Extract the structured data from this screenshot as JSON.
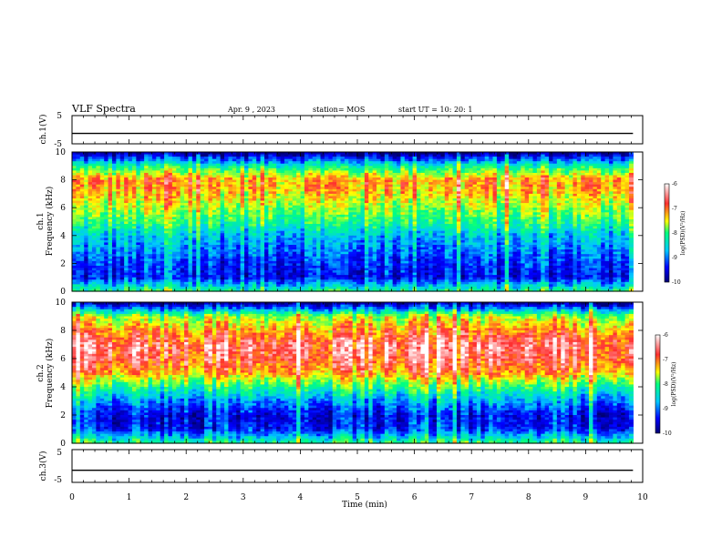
{
  "header": {
    "title": "VLF Spectra",
    "date": "Apr. 9 , 2023",
    "station": "station= MOS",
    "start": "start UT = 10: 20: 1"
  },
  "chart_data": [
    {
      "type": "line",
      "panel": "ch1-waveform",
      "ylabel": "ch.1(V)",
      "ylim": [
        -5,
        5
      ],
      "yticks": [
        "5",
        "-5"
      ],
      "xlim": [
        0,
        10
      ],
      "series": [
        {
          "x": [
            0,
            9.83
          ],
          "values": [
            -1.3,
            -1.3
          ]
        }
      ]
    },
    {
      "type": "heatmap",
      "panel": "ch1-spectrogram",
      "ylabel": "ch.1\nFrequency (kHz)",
      "ylabel_line1": "ch.1",
      "ylabel_line2": "Frequency (kHz)",
      "ylim": [
        0,
        10
      ],
      "yticks": [
        "0",
        "2",
        "4",
        "6",
        "8",
        "10"
      ],
      "xlim": [
        0,
        10
      ],
      "x_end_min": 9.83,
      "frequency_bands_khz": [
        0,
        1,
        2,
        3,
        4,
        5,
        6,
        7,
        8,
        9,
        10
      ],
      "typical_log_psd": [
        -8.0,
        -9.4,
        -9.2,
        -8.9,
        -8.6,
        -8.0,
        -7.6,
        -7.2,
        -7.0,
        -8.2,
        -10.0
      ],
      "colorbar": {
        "label": "log(PSD)(V²/Hz)",
        "min": -10,
        "max": -6,
        "ticks": [
          "-6",
          "-7",
          "-8",
          "-9",
          "-10"
        ]
      }
    },
    {
      "type": "heatmap",
      "panel": "ch2-spectrogram",
      "ylabel": "ch.2\nFrequency (kHz)",
      "ylabel_line1": "ch.2",
      "ylabel_line2": "Frequency (kHz)",
      "ylim": [
        0,
        10
      ],
      "yticks": [
        "0",
        "2",
        "4",
        "6",
        "8",
        "10"
      ],
      "xlim": [
        0,
        10
      ],
      "x_end_min": 9.83,
      "frequency_bands_khz": [
        0,
        1,
        2,
        3,
        4,
        5,
        6,
        7,
        8,
        9,
        10
      ],
      "typical_log_psd": [
        -8.0,
        -9.3,
        -9.4,
        -8.8,
        -8.0,
        -7.0,
        -6.6,
        -6.5,
        -7.0,
        -7.6,
        -10.0
      ],
      "colorbar": {
        "label": "log(PSD)(V²/Hz)",
        "min": -10,
        "max": -6,
        "ticks": [
          "-6",
          "-7",
          "-8",
          "-9",
          "-10"
        ]
      }
    },
    {
      "type": "line",
      "panel": "ch3-waveform",
      "ylabel": "ch.3(V)",
      "ylim": [
        -5,
        5
      ],
      "yticks": [
        "5",
        "-5"
      ],
      "xlim": [
        0,
        10
      ],
      "xlabel": "Time (min)",
      "xticks": [
        "0",
        "1",
        "2",
        "3",
        "4",
        "5",
        "6",
        "7",
        "8",
        "9",
        "10"
      ],
      "series": [
        {
          "x": [
            0,
            9.83
          ],
          "values": [
            -1.3,
            -1.3
          ]
        }
      ]
    }
  ],
  "colors": {
    "colormap": [
      "#000070",
      "#0000ff",
      "#00c8ff",
      "#00ff80",
      "#ffff00",
      "#ff3030",
      "#ffffff"
    ]
  }
}
